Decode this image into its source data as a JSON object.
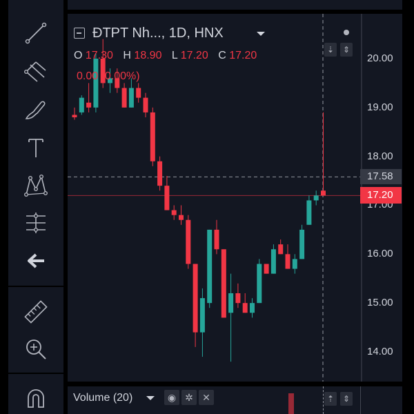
{
  "legend": {
    "symbol": "ĐTPT Nh...",
    "interval": "1D",
    "exchange": "HNX",
    "title": "ĐTPT Nh..., 1D, HNX",
    "open_label": "O",
    "open_value": "17.30",
    "high_label": "H",
    "high_value": "18.90",
    "low_label": "L",
    "low_value": "17.20",
    "close_label": "C",
    "close_value": "17.20",
    "change": "0.00 (0.00%)"
  },
  "price_axis": {
    "labels": [
      "20.00",
      "19.00",
      "18.00",
      "17.00",
      "16.00",
      "15.00",
      "14.00"
    ],
    "crosshair_price": "17.58",
    "last_price": "17.20"
  },
  "volume": {
    "label": "Volume (20)"
  },
  "icons": {
    "toolbar": [
      "trend-line-icon",
      "pitchfork-icon",
      "brush-icon",
      "text-icon",
      "pattern-icon",
      "measure-icon",
      "back-arrow-icon",
      "ruler-icon",
      "zoom-in-icon",
      "magnet-icon"
    ],
    "volume": [
      "eye-icon",
      "gear-icon",
      "close-icon"
    ]
  },
  "colors": {
    "up": "#26a69a",
    "down": "#f23645",
    "background": "#131722",
    "text": "#d1d4dc"
  },
  "chart_data": {
    "type": "candlestick",
    "ylim": [
      13.6,
      20.5
    ],
    "ohlc": [
      {
        "o": 18.85,
        "h": 19.0,
        "l": 18.75,
        "c": 18.8
      },
      {
        "o": 18.9,
        "h": 19.25,
        "l": 18.85,
        "c": 19.2
      },
      {
        "o": 19.1,
        "h": 19.5,
        "l": 18.9,
        "c": 19.0
      },
      {
        "o": 19.0,
        "h": 20.1,
        "l": 18.9,
        "c": 20.0
      },
      {
        "o": 20.0,
        "h": 20.4,
        "l": 19.4,
        "c": 19.5
      },
      {
        "o": 19.5,
        "h": 19.8,
        "l": 19.3,
        "c": 19.6
      },
      {
        "o": 19.6,
        "h": 19.8,
        "l": 19.3,
        "c": 19.4
      },
      {
        "o": 19.4,
        "h": 19.5,
        "l": 19.0,
        "c": 19.0
      },
      {
        "o": 19.0,
        "h": 19.6,
        "l": 19.0,
        "c": 19.4
      },
      {
        "o": 19.4,
        "h": 19.5,
        "l": 19.1,
        "c": 19.2
      },
      {
        "o": 19.2,
        "h": 19.3,
        "l": 18.8,
        "c": 18.9
      },
      {
        "o": 18.9,
        "h": 19.0,
        "l": 17.8,
        "c": 17.9
      },
      {
        "o": 17.9,
        "h": 18.0,
        "l": 17.3,
        "c": 17.4
      },
      {
        "o": 17.4,
        "h": 17.6,
        "l": 16.9,
        "c": 16.9
      },
      {
        "o": 16.9,
        "h": 17.0,
        "l": 16.7,
        "c": 16.8
      },
      {
        "o": 16.8,
        "h": 17.0,
        "l": 16.6,
        "c": 16.7
      },
      {
        "o": 16.7,
        "h": 16.8,
        "l": 15.7,
        "c": 15.8
      },
      {
        "o": 15.8,
        "h": 15.8,
        "l": 14.1,
        "c": 14.4
      },
      {
        "o": 14.4,
        "h": 15.3,
        "l": 13.9,
        "c": 15.1
      },
      {
        "o": 15.0,
        "h": 16.5,
        "l": 14.9,
        "c": 16.5
      },
      {
        "o": 16.5,
        "h": 16.7,
        "l": 16.0,
        "c": 16.1
      },
      {
        "o": 16.1,
        "h": 16.1,
        "l": 14.7,
        "c": 14.7
      },
      {
        "o": 14.8,
        "h": 15.6,
        "l": 13.8,
        "c": 15.2
      },
      {
        "o": 15.2,
        "h": 15.4,
        "l": 14.9,
        "c": 15.0
      },
      {
        "o": 15.0,
        "h": 15.2,
        "l": 14.8,
        "c": 14.8
      },
      {
        "o": 14.8,
        "h": 15.1,
        "l": 14.7,
        "c": 15.0
      },
      {
        "o": 15.0,
        "h": 15.9,
        "l": 15.0,
        "c": 15.8
      },
      {
        "o": 15.8,
        "h": 15.8,
        "l": 15.6,
        "c": 15.6
      },
      {
        "o": 15.6,
        "h": 16.2,
        "l": 15.6,
        "c": 16.1
      },
      {
        "o": 16.2,
        "h": 16.3,
        "l": 16.0,
        "c": 16.0
      },
      {
        "o": 16.0,
        "h": 16.2,
        "l": 15.7,
        "c": 15.7
      },
      {
        "o": 15.7,
        "h": 16.0,
        "l": 15.6,
        "c": 15.9
      },
      {
        "o": 15.9,
        "h": 16.6,
        "l": 15.9,
        "c": 16.5
      },
      {
        "o": 16.6,
        "h": 17.2,
        "l": 16.6,
        "c": 17.1
      },
      {
        "o": 17.1,
        "h": 17.3,
        "l": 17.0,
        "c": 17.2
      },
      {
        "o": 17.3,
        "h": 18.9,
        "l": 17.2,
        "c": 17.2
      }
    ]
  }
}
